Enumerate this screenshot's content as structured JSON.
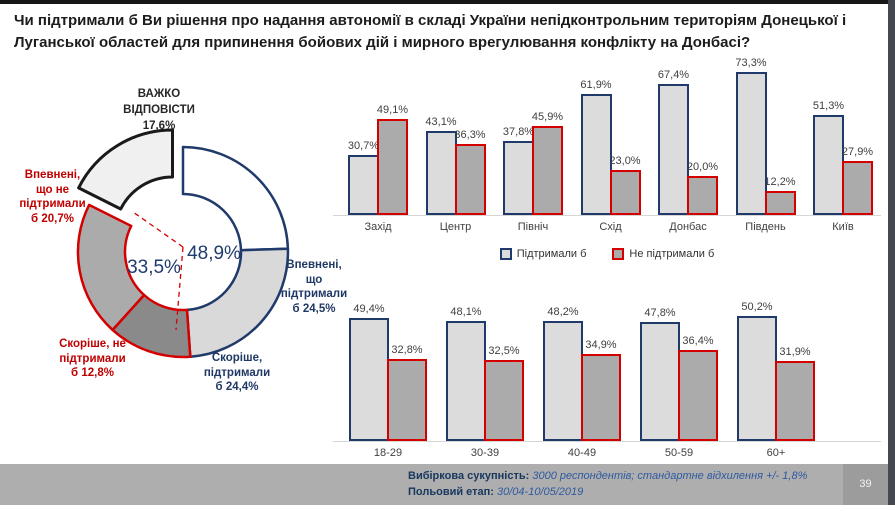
{
  "title": "Чи підтримали б Ви рішення про надання автономії в складі України непідконтрольним територіям Донецької і\nЛуганської областей для припинення бойових дій і мирного врегулювання конфлікту на Донбасі?",
  "colors": {
    "support_stroke": "#1F3A6B",
    "oppose_stroke": "#D40000",
    "support_fill": "#DCDCDC",
    "oppose_fill": "#ABABAB",
    "navy_text": "#1F3864",
    "red_text": "#C00000"
  },
  "chart_data": [
    {
      "type": "pie",
      "subtype": "donut",
      "slices": [
        {
          "label": "Впевнені, що підтримали б",
          "value": 24.5,
          "fill": "#FFFFFF",
          "stroke": "#1F3A6B"
        },
        {
          "label": "Скоріше, підтримали б",
          "value": 24.4,
          "fill": "#D9D9D9",
          "stroke": "#1F3A6B"
        },
        {
          "label": "Скоріше, не підтримали б",
          "value": 12.8,
          "fill": "#8A8A8A",
          "stroke": "#D40000"
        },
        {
          "label": "Впевнені, що не підтримали б",
          "value": 20.7,
          "fill": "#ABABAB",
          "stroke": "#D40000"
        },
        {
          "label": "Важко відповісти",
          "value": 17.6,
          "fill": "#F0F0F0",
          "stroke": "#1A1A1A",
          "exploded": true
        }
      ],
      "callouts": {
        "hard": "ВАЖКО\nВІДПОВІСТИ\n17,6%",
        "sure_no": "Впевнені,\nщо не\nпідтримали\nб 20,7%",
        "rather_no": "Скоріше, не\nпідтримали\nб 12,8%",
        "rather_yes": "Скоріше,\nпідтримали\nб 24,4%",
        "sure_yes": "Впевнені,\nщо\nпідтримали\nб 24,5%",
        "total_no": "33,5%",
        "total_yes": "48,9%"
      }
    },
    {
      "type": "bar",
      "categories": [
        "Захід",
        "Центр",
        "Північ",
        "Схід",
        "Донбас",
        "Південь",
        "Київ"
      ],
      "series": [
        {
          "name": "Підтримали б",
          "values": [
            30.7,
            43.1,
            37.8,
            61.9,
            67.4,
            73.3,
            51.3
          ]
        },
        {
          "name": "Не підтримали б",
          "values": [
            49.1,
            36.3,
            45.9,
            23.0,
            20.0,
            12.2,
            27.9
          ]
        }
      ],
      "ylim": [
        0,
        80
      ],
      "grid": false,
      "value_label_format": "0,0%"
    },
    {
      "type": "bar",
      "categories": [
        "18-29",
        "30-39",
        "40-49",
        "50-59",
        "60+"
      ],
      "series": [
        {
          "name": "Підтримали б",
          "values": [
            49.4,
            48.1,
            48.2,
            47.8,
            50.2
          ]
        },
        {
          "name": "Не підтримали б",
          "values": [
            32.8,
            32.5,
            34.9,
            36.4,
            31.9
          ]
        }
      ],
      "ylim": [
        0,
        55
      ],
      "grid": false,
      "value_label_format": "0,0%"
    }
  ],
  "legend": {
    "items": [
      {
        "label": "Підтримали б",
        "fill": "#DCDCDC",
        "stroke": "#1F3A6B"
      },
      {
        "label": "Не підтримали б",
        "fill": "#ABABAB",
        "stroke": "#D40000"
      }
    ]
  },
  "footer": {
    "sample_label": "Вибіркова сукупність:",
    "sample_value": "3000 респондентів; стандартне відхилення +/- 1,8%",
    "field_label": "Польовий етап:",
    "field_value": "30/04-10/05/2019",
    "page": "39"
  }
}
